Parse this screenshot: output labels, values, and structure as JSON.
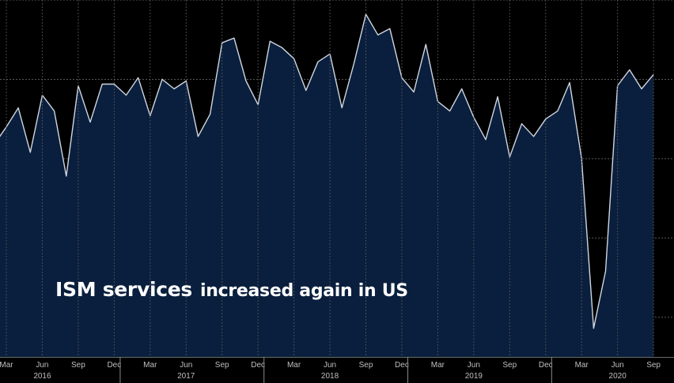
{
  "chart_data": {
    "type": "area",
    "title": "",
    "xlabel": "",
    "ylabel": "",
    "annotation": {
      "part1": "ISM services",
      "part2": "increased again in US"
    },
    "x": [
      "2016-02",
      "2016-03",
      "2016-04",
      "2016-05",
      "2016-06",
      "2016-07",
      "2016-08",
      "2016-09",
      "2016-10",
      "2016-11",
      "2016-12",
      "2017-01",
      "2017-02",
      "2017-03",
      "2017-04",
      "2017-05",
      "2017-06",
      "2017-07",
      "2017-08",
      "2017-09",
      "2017-10",
      "2017-11",
      "2017-12",
      "2018-01",
      "2018-02",
      "2018-03",
      "2018-04",
      "2018-05",
      "2018-06",
      "2018-07",
      "2018-08",
      "2018-09",
      "2018-10",
      "2018-11",
      "2018-12",
      "2019-01",
      "2019-02",
      "2019-03",
      "2019-04",
      "2019-05",
      "2019-06",
      "2019-07",
      "2019-08",
      "2019-09",
      "2019-10",
      "2019-11",
      "2019-12",
      "2020-01",
      "2020-02",
      "2020-03",
      "2020-04",
      "2020-05",
      "2020-06",
      "2020-07",
      "2020-08",
      "2020-09"
    ],
    "values": [
      53.4,
      54.5,
      55.7,
      52.9,
      56.5,
      55.5,
      51.4,
      57.1,
      54.8,
      57.2,
      57.2,
      56.5,
      57.6,
      55.2,
      57.5,
      56.9,
      57.4,
      53.9,
      55.3,
      59.8,
      60.1,
      57.4,
      55.9,
      59.9,
      59.5,
      58.8,
      56.8,
      58.6,
      59.1,
      55.7,
      58.5,
      61.6,
      60.3,
      60.7,
      57.6,
      56.7,
      59.7,
      56.1,
      55.5,
      56.9,
      55.1,
      53.7,
      56.4,
      52.6,
      54.7,
      53.9,
      55.0,
      55.5,
      57.3,
      52.5,
      41.8,
      45.4,
      57.1,
      58.1,
      56.9,
      57.8
    ],
    "ylim": [
      40,
      62.5
    ],
    "x_ticks": [
      {
        "date": "2016-03",
        "label": "Mar"
      },
      {
        "date": "2016-06",
        "label": "Jun"
      },
      {
        "date": "2016-09",
        "label": "Sep"
      },
      {
        "date": "2016-12",
        "label": "Dec"
      },
      {
        "date": "2017-03",
        "label": "Mar"
      },
      {
        "date": "2017-06",
        "label": "Jun"
      },
      {
        "date": "2017-09",
        "label": "Sep"
      },
      {
        "date": "2017-12",
        "label": "Dec"
      },
      {
        "date": "2018-03",
        "label": "Mar"
      },
      {
        "date": "2018-06",
        "label": "Jun"
      },
      {
        "date": "2018-09",
        "label": "Sep"
      },
      {
        "date": "2018-12",
        "label": "Dec"
      },
      {
        "date": "2019-03",
        "label": "Mar"
      },
      {
        "date": "2019-06",
        "label": "Jun"
      },
      {
        "date": "2019-09",
        "label": "Sep"
      },
      {
        "date": "2019-12",
        "label": "Dec"
      },
      {
        "date": "2020-03",
        "label": "Mar"
      },
      {
        "date": "2020-06",
        "label": "Jun"
      },
      {
        "date": "2020-09",
        "label": "Sep"
      }
    ],
    "year_labels": [
      {
        "date": "2016-06",
        "label": "2016"
      },
      {
        "date": "2017-06",
        "label": "2017"
      },
      {
        "date": "2018-06",
        "label": "2018"
      },
      {
        "date": "2019-06",
        "label": "2019"
      },
      {
        "date": "2020-06",
        "label": "2020"
      }
    ],
    "year_dividers": [
      "2017-01",
      "2018-01",
      "2019-01",
      "2020-01"
    ],
    "y_gridlines": [
      42.5,
      47.5,
      52.5,
      57.5,
      62.5
    ],
    "grid": true,
    "colors": {
      "background": "#000000",
      "area_fill": "#0a1f3d",
      "line": "#cfd6e0",
      "grid": "#5a5a5a",
      "axis_text": "#bfbfbf",
      "caption": "#ffffff"
    }
  }
}
